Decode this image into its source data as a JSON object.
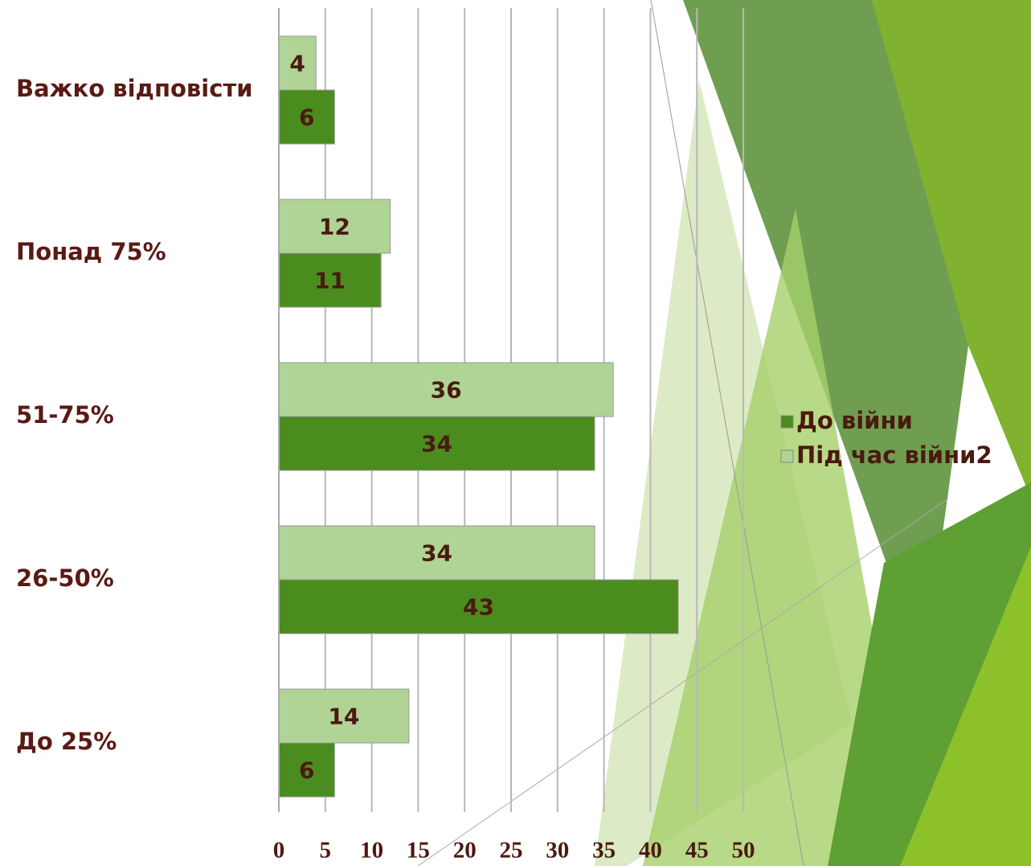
{
  "chart_data": {
    "type": "bar",
    "orientation": "horizontal",
    "categories": [
      "Важко відповісти",
      "Понад 75%",
      "51-75%",
      "26-50%",
      "До 25%"
    ],
    "series": [
      {
        "name": "До війни",
        "color": "#4a8c1e",
        "values": [
          6,
          11,
          34,
          43,
          6
        ]
      },
      {
        "name": "Під час війни2",
        "color": "#afd496",
        "values": [
          4,
          12,
          36,
          34,
          14
        ]
      }
    ],
    "xlim": [
      0,
      50
    ],
    "xticks": [
      0,
      5,
      10,
      15,
      20,
      25,
      30,
      35,
      40,
      45,
      50
    ],
    "grid": true,
    "legend": "right"
  }
}
